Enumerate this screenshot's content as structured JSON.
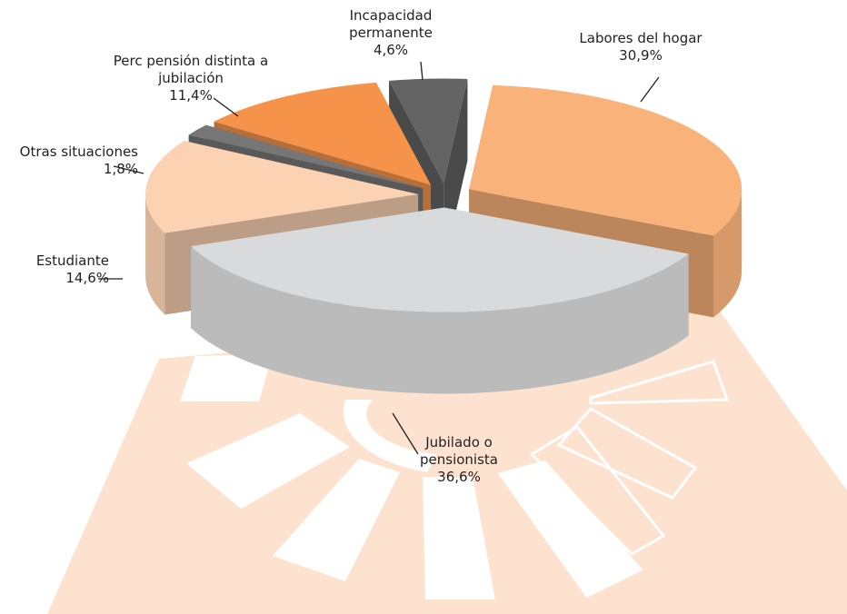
{
  "chart_data": {
    "type": "pie",
    "categories": [
      "Labores del hogar",
      "Jubilado o pensionista",
      "Estudiante",
      "Otras situaciones",
      "Perc pensión distinta a jubilación",
      "Incapacidad permanente"
    ],
    "values": [
      30.9,
      36.6,
      14.6,
      1.8,
      11.4,
      4.6
    ],
    "value_labels": [
      "30,9%",
      "36,6%",
      "14,6%",
      "1,8%",
      "11,4%",
      "4,6%"
    ],
    "colors": [
      "#f9b27a",
      "#d9dadb",
      "#fbd3b2",
      "#767676",
      "#f5934a",
      "#636363"
    ]
  }
}
